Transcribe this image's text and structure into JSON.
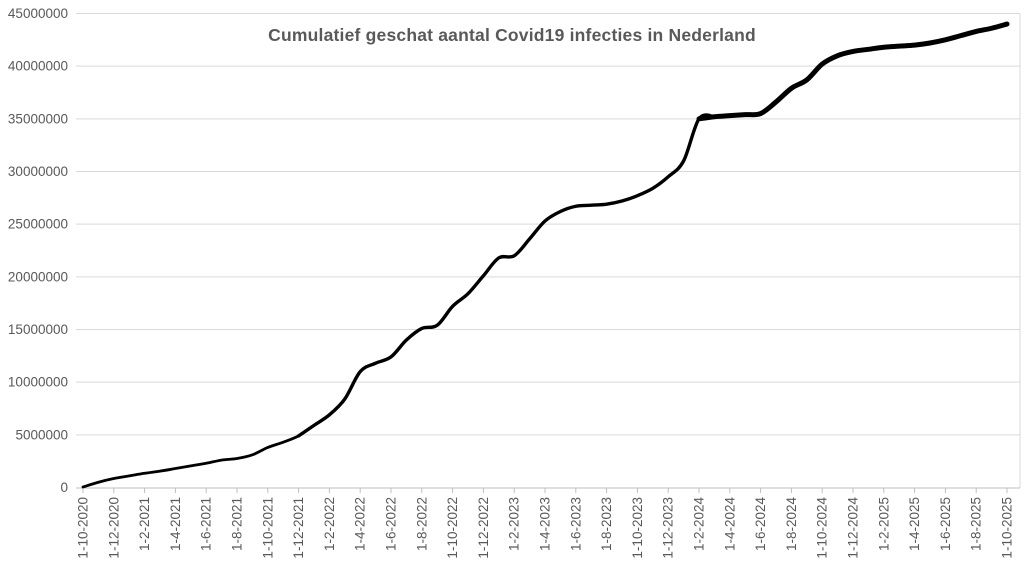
{
  "chart_data": {
    "type": "line",
    "title": "Cumulatief geschat aantal Covid19 infecties in Nederland",
    "xlabel": "",
    "ylabel": "",
    "ylim": [
      0,
      45000000
    ],
    "grid": "horizontal",
    "legend": "none",
    "line_color": "#000000",
    "label_color": "#595959",
    "gridline_color": "#d9d9d9",
    "axis_color": "#bfbfbf",
    "y_ticks": [
      0,
      5000000,
      10000000,
      15000000,
      20000000,
      25000000,
      30000000,
      35000000,
      40000000,
      45000000
    ],
    "y_tick_labels": [
      "0",
      "5000000",
      "10000000",
      "15000000",
      "20000000",
      "25000000",
      "30000000",
      "35000000",
      "40000000",
      "45000000"
    ],
    "x_tick_step": 2,
    "x_tick_labels": [
      "1-10-2020",
      "1-12-2020",
      "1-2-2021",
      "1-4-2021",
      "1-6-2021",
      "1-8-2021",
      "1-10-2021",
      "1-12-2021",
      "1-2-2022",
      "1-4-2022",
      "1-6-2022",
      "1-8-2022",
      "1-10-2022",
      "1-12-2022",
      "1-2-2023",
      "1-4-2023",
      "1-6-2023",
      "1-8-2023",
      "1-10-2023",
      "1-12-2023",
      "1-2-2024",
      "1-4-2024",
      "1-6-2024",
      "1-8-2024",
      "1-10-2024",
      "1-12-2024",
      "1-2-2025",
      "1-4-2025",
      "1-6-2025",
      "1-8-2025",
      "1-10-2025"
    ],
    "series": [
      {
        "name": "Cumulatief geschat aantal Covid19 infecties",
        "dates": [
          "1-10-2020",
          "1-11-2020",
          "1-12-2020",
          "1-1-2021",
          "1-2-2021",
          "1-3-2021",
          "1-4-2021",
          "1-5-2021",
          "1-6-2021",
          "1-7-2021",
          "1-8-2021",
          "1-9-2021",
          "1-10-2021",
          "1-11-2021",
          "1-12-2021",
          "1-1-2022",
          "1-2-2022",
          "1-3-2022",
          "1-4-2022",
          "1-5-2022",
          "1-6-2022",
          "1-7-2022",
          "1-8-2022",
          "1-9-2022",
          "1-10-2022",
          "1-11-2022",
          "1-12-2022",
          "1-1-2023",
          "1-2-2023",
          "1-3-2023",
          "1-4-2023",
          "1-5-2023",
          "1-6-2023",
          "1-7-2023",
          "1-8-2023",
          "1-9-2023",
          "1-10-2023",
          "1-11-2023",
          "1-12-2023",
          "1-1-2024",
          "1-2-2024",
          "1-3-2024",
          "1-4-2024",
          "1-5-2024",
          "1-6-2024",
          "1-7-2024",
          "1-8-2024",
          "1-9-2024",
          "1-10-2024",
          "1-11-2024",
          "1-12-2024",
          "1-1-2025",
          "1-2-2025",
          "1-3-2025",
          "1-4-2025",
          "1-5-2025",
          "1-6-2025",
          "1-7-2025",
          "1-8-2025",
          "1-9-2025",
          "1-10-2025"
        ],
        "values": [
          50000,
          500000,
          850000,
          1100000,
          1350000,
          1550000,
          1800000,
          2050000,
          2300000,
          2600000,
          2750000,
          3100000,
          3800000,
          4300000,
          4900000,
          5900000,
          6900000,
          8400000,
          11000000,
          11800000,
          12400000,
          14000000,
          15100000,
          15400000,
          17200000,
          18400000,
          20100000,
          21800000,
          22000000,
          23600000,
          25300000,
          26200000,
          26700000,
          26800000,
          26900000,
          27200000,
          27700000,
          28400000,
          29500000,
          31000000,
          35000000,
          35200000,
          35300000,
          35400000,
          35500000,
          36600000,
          37900000,
          38700000,
          40200000,
          41000000,
          41400000,
          41600000,
          41800000,
          41900000,
          42000000,
          42200000,
          42500000,
          42900000,
          43300000,
          43600000,
          44000000
        ]
      }
    ]
  }
}
